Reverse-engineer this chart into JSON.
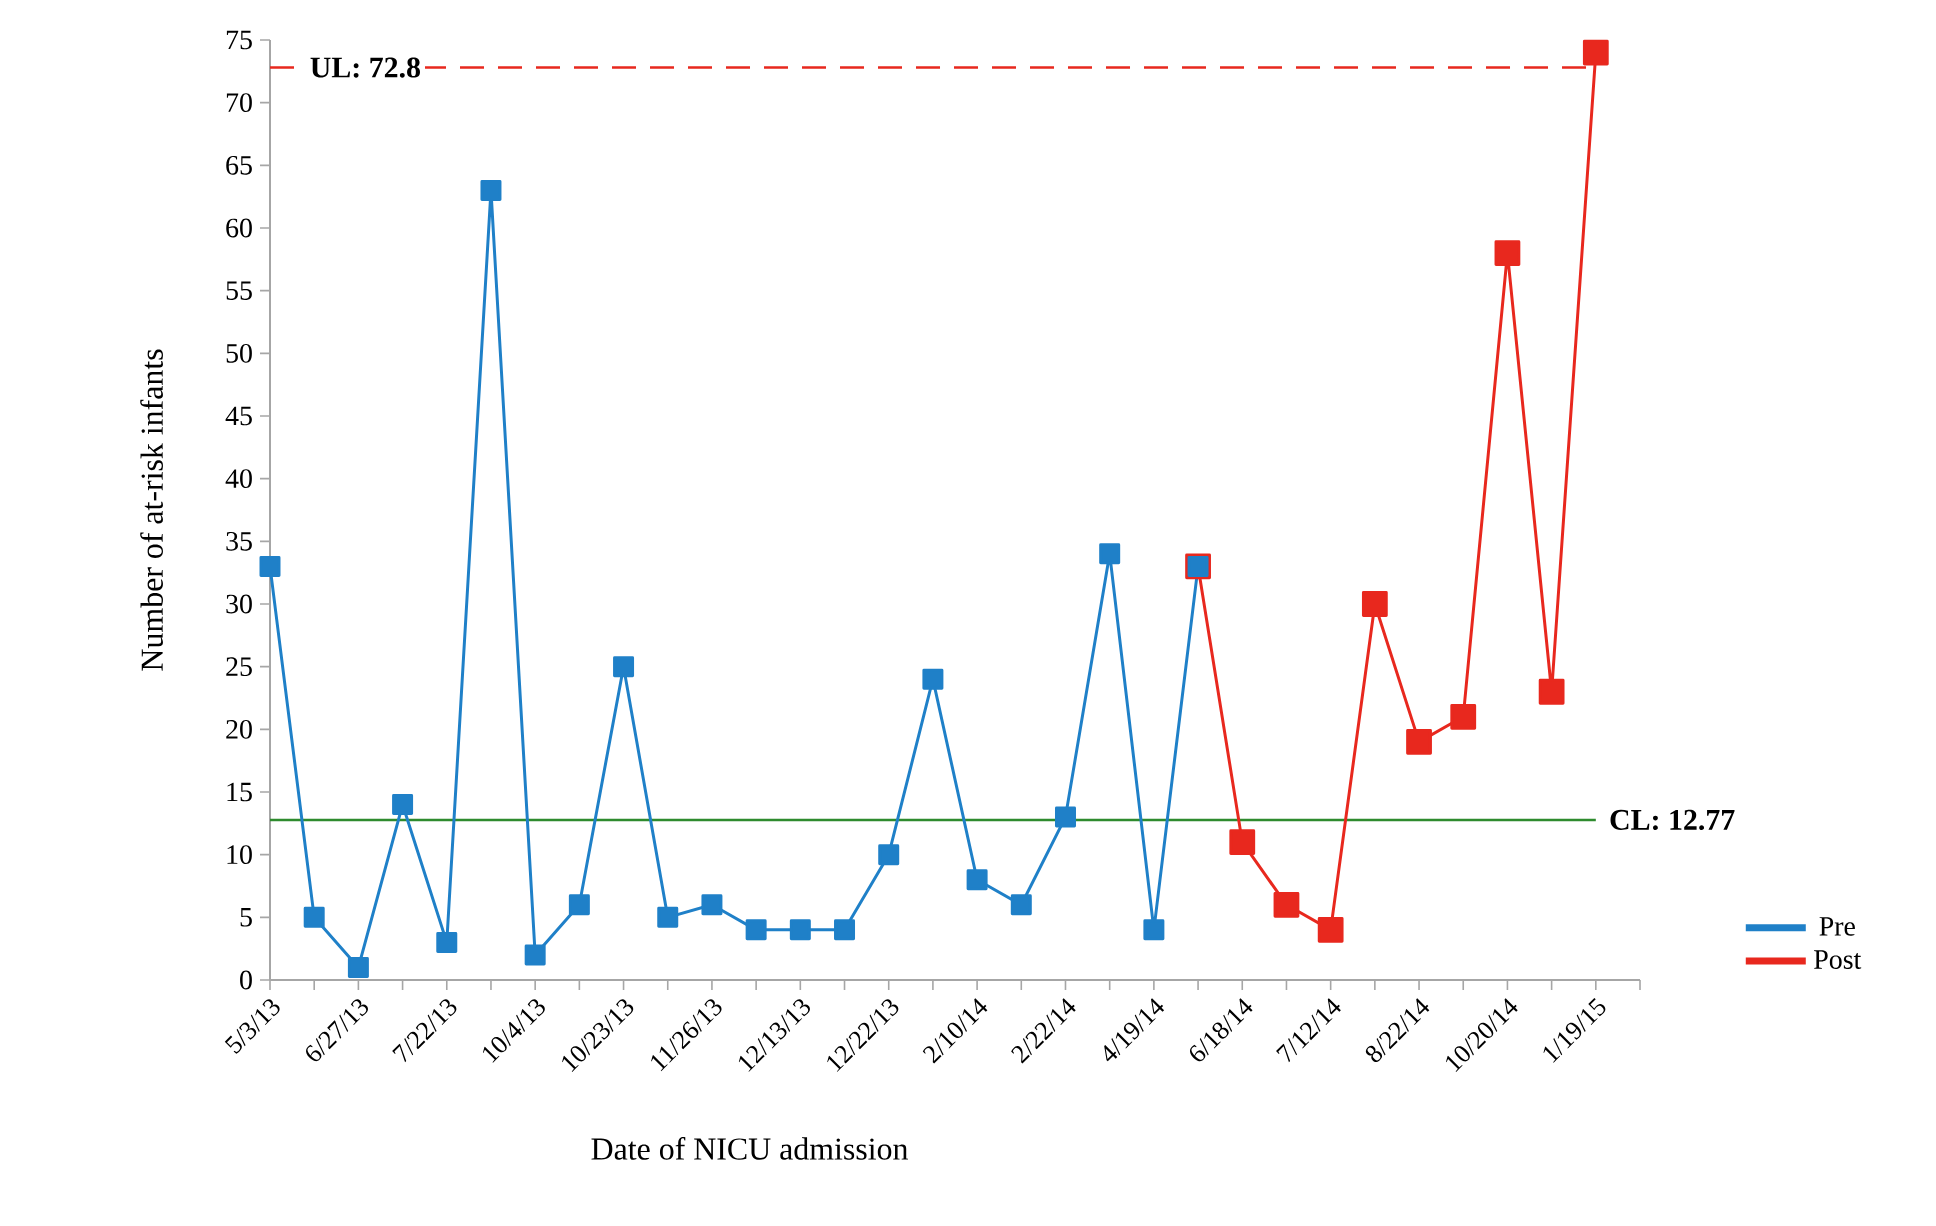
{
  "chart_data": {
    "type": "line",
    "xlabel": "Date of NICU admission",
    "ylabel": "Number of at-risk infants",
    "categories": [
      "5/3/13",
      null,
      "6/27/13",
      null,
      "7/22/13",
      null,
      "10/4/13",
      null,
      "10/23/13",
      null,
      "11/26/13",
      null,
      "12/13/13",
      null,
      "12/22/13",
      null,
      "2/10/14",
      null,
      "2/22/14",
      null,
      "4/19/14",
      null,
      "6/18/14",
      null,
      "7/12/14",
      null,
      "8/22/14",
      null,
      "10/20/14",
      null,
      "1/19/15"
    ],
    "series": [
      {
        "name": "Pre",
        "color": "#1f80c8",
        "values": [
          33,
          5,
          1,
          14,
          3,
          63,
          2,
          6,
          25,
          5,
          6,
          4,
          4,
          4,
          10,
          24,
          8,
          6,
          13,
          34,
          4,
          33,
          null,
          null,
          null,
          null,
          null,
          null,
          null,
          null,
          null
        ]
      },
      {
        "name": "Post",
        "color": "#e8281e",
        "values": [
          null,
          null,
          null,
          null,
          null,
          null,
          null,
          null,
          null,
          null,
          null,
          null,
          null,
          null,
          null,
          null,
          null,
          null,
          null,
          null,
          null,
          33,
          11,
          6,
          4,
          30,
          19,
          21,
          58,
          23,
          74
        ]
      }
    ],
    "ylim": [
      0,
      75
    ],
    "yticks": [
      0,
      5,
      10,
      15,
      20,
      25,
      30,
      35,
      40,
      45,
      50,
      55,
      60,
      65,
      70,
      75
    ],
    "ref_lines": [
      {
        "axis": "y",
        "value": 72.8,
        "label": "UL: 72.8",
        "color": "#e8281e",
        "line_style": "dashed"
      },
      {
        "axis": "y",
        "value": 12.77,
        "label": "CL: 12.77",
        "color": "#2e8b2e",
        "line_style": "solid"
      }
    ],
    "marker": "square",
    "line_style": "solid",
    "grid": false,
    "legend": "bottom right"
  }
}
